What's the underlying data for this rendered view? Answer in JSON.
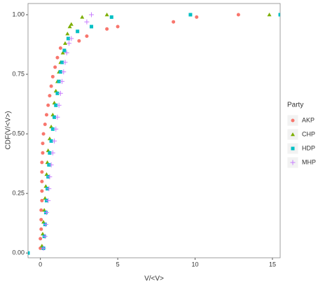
{
  "chart_data": {
    "type": "scatter",
    "xlabel": "V/<V>",
    "ylabel": "CDF(V/<V>)",
    "legend_title": "Party",
    "legend_position": "right",
    "grid": true,
    "xlim": [
      -0.8,
      15.5
    ],
    "ylim": [
      -0.02,
      1.047
    ],
    "xticks": [
      0,
      5,
      10,
      15
    ],
    "yticks": [
      {
        "value": 0,
        "label": "0.00"
      },
      {
        "value": 0.25,
        "label": "0.25"
      },
      {
        "value": 0.5,
        "label": "0.50"
      },
      {
        "value": 0.75,
        "label": "0.75"
      },
      {
        "value": 1,
        "label": "1.00"
      }
    ],
    "series": [
      {
        "name": "AKP",
        "color": "#F8766D",
        "shape": "circle",
        "x": [
          0.0,
          0.0,
          0.05,
          0.05,
          0.05,
          0.1,
          0.1,
          0.1,
          0.1,
          0.1,
          0.15,
          0.15,
          0.2,
          0.3,
          0.4,
          0.5,
          0.6,
          0.7,
          0.8,
          0.95,
          1.1,
          1.3,
          2.5,
          3.0,
          4.3,
          5.0,
          8.6,
          10.1,
          12.8
        ],
        "values": [
          0.02,
          0.06,
          0.1,
          0.14,
          0.18,
          0.22,
          0.26,
          0.3,
          0.34,
          0.38,
          0.42,
          0.46,
          0.5,
          0.54,
          0.58,
          0.62,
          0.66,
          0.7,
          0.74,
          0.78,
          0.82,
          0.86,
          0.89,
          0.91,
          0.94,
          0.95,
          0.97,
          0.99,
          1.0
        ]
      },
      {
        "name": "CHP",
        "color": "#7CAE00",
        "shape": "triangle",
        "x": [
          0.1,
          0.15,
          0.2,
          0.25,
          0.3,
          0.35,
          0.4,
          0.45,
          0.5,
          0.6,
          0.7,
          0.8,
          0.9,
          1.0,
          1.1,
          1.2,
          1.3,
          1.45,
          1.6,
          1.75,
          1.9,
          2.0,
          2.7,
          4.3,
          14.8
        ],
        "values": [
          0.03,
          0.08,
          0.13,
          0.18,
          0.23,
          0.28,
          0.33,
          0.38,
          0.43,
          0.48,
          0.53,
          0.58,
          0.63,
          0.68,
          0.72,
          0.76,
          0.8,
          0.84,
          0.88,
          0.92,
          0.95,
          0.96,
          0.99,
          1.0,
          1.0
        ]
      },
      {
        "name": "HDP",
        "color": "#00BFC4",
        "shape": "square",
        "x": [
          -0.8,
          0.2,
          0.25,
          0.3,
          0.35,
          0.4,
          0.45,
          0.5,
          0.55,
          0.6,
          0.7,
          0.8,
          0.9,
          1.0,
          1.1,
          1.2,
          1.3,
          1.4,
          1.55,
          1.8,
          2.4,
          3.3,
          4.6,
          9.7,
          15.5
        ],
        "values": [
          0.0,
          0.02,
          0.07,
          0.12,
          0.17,
          0.22,
          0.27,
          0.32,
          0.37,
          0.42,
          0.47,
          0.52,
          0.57,
          0.62,
          0.67,
          0.72,
          0.76,
          0.8,
          0.85,
          0.9,
          0.93,
          0.95,
          0.99,
          1.0,
          1.0
        ]
      },
      {
        "name": "MHP",
        "color": "#C77CFF",
        "shape": "plus",
        "x": [
          0.2,
          0.3,
          0.35,
          0.4,
          0.5,
          0.55,
          0.6,
          0.7,
          0.8,
          0.9,
          1.0,
          1.1,
          1.2,
          1.3,
          1.4,
          1.5,
          1.6,
          1.7,
          1.85,
          2.0,
          3.0,
          3.3
        ],
        "values": [
          0.02,
          0.07,
          0.12,
          0.17,
          0.22,
          0.27,
          0.32,
          0.37,
          0.42,
          0.47,
          0.52,
          0.57,
          0.62,
          0.67,
          0.72,
          0.76,
          0.8,
          0.84,
          0.88,
          0.9,
          0.97,
          1.0
        ]
      }
    ]
  }
}
